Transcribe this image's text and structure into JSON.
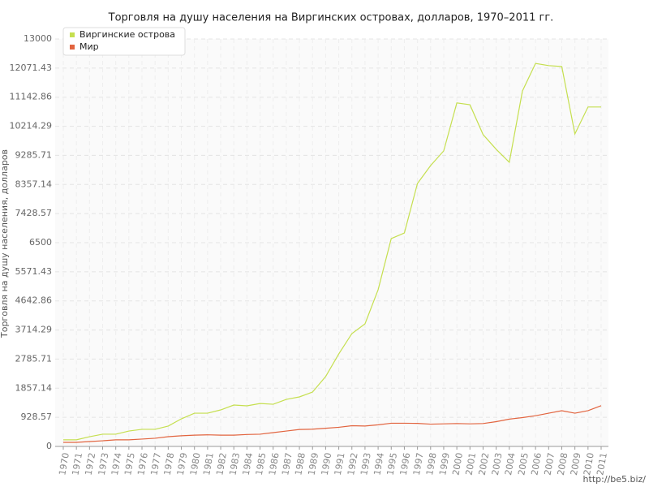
{
  "chart_data": {
    "type": "line",
    "title": "Торговля на душу населения на Виргинских островах, долларов, 1970–2011 гг.",
    "y_label": "Торговля на душу населения, долларов",
    "annotation": "http://be5.biz/",
    "categories": [
      "1970",
      "1971",
      "1972",
      "1973",
      "1974",
      "1975",
      "1976",
      "1977",
      "1978",
      "1979",
      "1980",
      "1981",
      "1982",
      "1983",
      "1984",
      "1985",
      "1986",
      "1987",
      "1988",
      "1989",
      "1990",
      "1991",
      "1992",
      "1993",
      "1994",
      "1995",
      "1996",
      "1997",
      "1998",
      "1999",
      "2000",
      "2001",
      "2002",
      "2003",
      "2004",
      "2005",
      "2006",
      "2007",
      "2008",
      "2009",
      "2010",
      "2011"
    ],
    "series": [
      {
        "name": "Виргинские острова",
        "color": "#c5df4f",
        "values": [
          210,
          210,
          310,
          390,
          390,
          490,
          545,
          545,
          650,
          880,
          1060,
          1060,
          1165,
          1320,
          1295,
          1370,
          1345,
          1500,
          1580,
          1735,
          2230,
          2950,
          3600,
          3910,
          5000,
          6630,
          6810,
          8390,
          8960,
          9430,
          10960,
          10900,
          9950,
          9480,
          9065,
          11340,
          12220,
          12150,
          12120,
          9970,
          10830,
          10830
        ]
      },
      {
        "name": "Мир",
        "color": "#e2643f",
        "values": [
          130,
          130,
          155,
          180,
          210,
          210,
          235,
          260,
          310,
          340,
          360,
          370,
          360,
          360,
          380,
          390,
          440,
          490,
          540,
          550,
          580,
          610,
          660,
          650,
          690,
          740,
          740,
          735,
          710,
          720,
          730,
          720,
          730,
          790,
          870,
          920,
          980,
          1060,
          1140,
          1060,
          1140,
          1300
        ]
      }
    ],
    "ylim": [
      0,
      13000
    ],
    "yticks": [
      0,
      928.57,
      1857.14,
      2785.71,
      3714.29,
      4642.86,
      5571.43,
      6500,
      7428.57,
      8357.14,
      9285.71,
      10214.29,
      11142.86,
      12071.43,
      13000
    ],
    "grid": true,
    "legend": "top-left"
  }
}
